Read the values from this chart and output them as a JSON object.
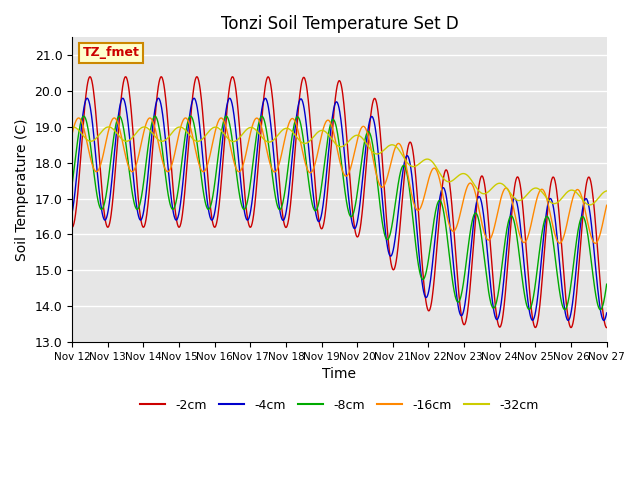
{
  "title": "Tonzi Soil Temperature Set D",
  "xlabel": "Time",
  "ylabel": "Soil Temperature (C)",
  "ylim": [
    13.0,
    21.5
  ],
  "xlim": [
    0,
    360
  ],
  "background_color": "#e6e6e6",
  "legend_label": "TZ_fmet",
  "series_labels": [
    "-2cm",
    "-4cm",
    "-8cm",
    "-16cm",
    "-32cm"
  ],
  "series_colors": [
    "#cc0000",
    "#0000cc",
    "#00aa00",
    "#ff8800",
    "#cccc00"
  ],
  "x_tick_labels": [
    "Nov 12",
    "Nov 13",
    "Nov 14",
    "Nov 15",
    "Nov 16",
    "Nov 17",
    "Nov 18",
    "Nov 19",
    "Nov 20",
    "Nov 21",
    "Nov 22",
    "Nov 23",
    "Nov 24",
    "Nov 25",
    "Nov 26",
    "Nov 27"
  ],
  "x_tick_positions": [
    0,
    24,
    48,
    72,
    96,
    120,
    144,
    168,
    192,
    216,
    240,
    264,
    288,
    312,
    336,
    360
  ],
  "y_ticks": [
    13.0,
    14.0,
    15.0,
    16.0,
    17.0,
    18.0,
    19.0,
    20.0,
    21.0
  ],
  "legend_box_color": "#ffffcc",
  "legend_box_edge_color": "#cc8800",
  "legend_text_color": "#cc0000"
}
